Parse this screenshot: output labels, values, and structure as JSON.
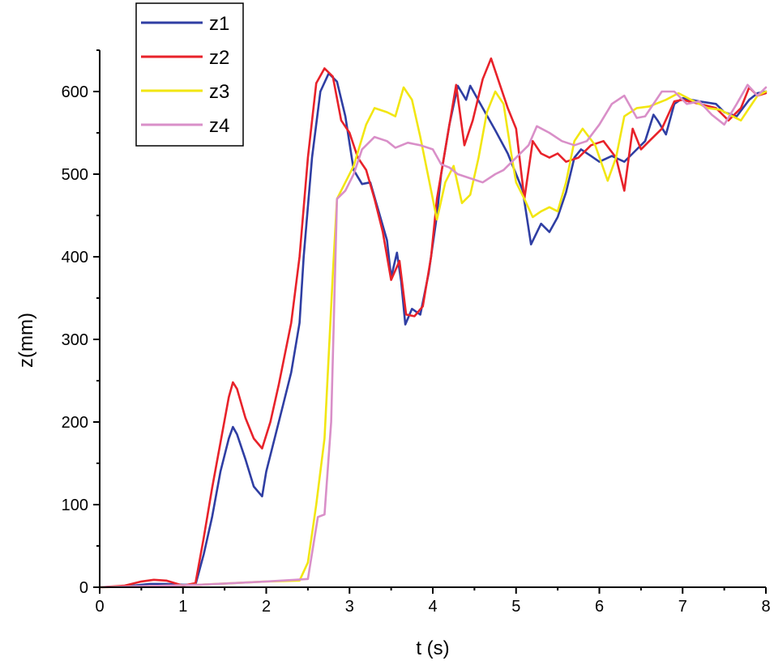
{
  "chart_data": {
    "type": "line",
    "title": "",
    "xlabel": "t (s)",
    "ylabel": "z(mm)",
    "xlim": [
      0,
      8
    ],
    "ylim": [
      0,
      650
    ],
    "x_ticks": [
      "0",
      "1",
      "2",
      "3",
      "4",
      "5",
      "6",
      "7",
      "8"
    ],
    "y_ticks": [
      "0",
      "100",
      "200",
      "300",
      "400",
      "500",
      "600"
    ],
    "grid": false,
    "legend_position": "top-left",
    "series": [
      {
        "name": "z1",
        "color": "#2f3ea3",
        "points": [
          [
            0,
            0
          ],
          [
            0.3,
            1
          ],
          [
            0.6,
            4
          ],
          [
            0.8,
            4
          ],
          [
            1.0,
            3
          ],
          [
            1.15,
            3
          ],
          [
            1.25,
            40
          ],
          [
            1.35,
            85
          ],
          [
            1.45,
            140
          ],
          [
            1.55,
            180
          ],
          [
            1.6,
            194
          ],
          [
            1.65,
            185
          ],
          [
            1.75,
            155
          ],
          [
            1.85,
            122
          ],
          [
            1.95,
            110
          ],
          [
            2.0,
            140
          ],
          [
            2.1,
            180
          ],
          [
            2.2,
            220
          ],
          [
            2.3,
            260
          ],
          [
            2.4,
            320
          ],
          [
            2.45,
            400
          ],
          [
            2.55,
            520
          ],
          [
            2.65,
            600
          ],
          [
            2.75,
            622
          ],
          [
            2.85,
            612
          ],
          [
            2.95,
            570
          ],
          [
            3.05,
            505
          ],
          [
            3.15,
            488
          ],
          [
            3.25,
            490
          ],
          [
            3.35,
            455
          ],
          [
            3.45,
            420
          ],
          [
            3.5,
            375
          ],
          [
            3.57,
            405
          ],
          [
            3.62,
            370
          ],
          [
            3.67,
            318
          ],
          [
            3.75,
            337
          ],
          [
            3.85,
            330
          ],
          [
            3.95,
            380
          ],
          [
            4.05,
            450
          ],
          [
            4.1,
            500
          ],
          [
            4.2,
            560
          ],
          [
            4.3,
            607
          ],
          [
            4.4,
            590
          ],
          [
            4.45,
            607
          ],
          [
            4.6,
            580
          ],
          [
            4.75,
            553
          ],
          [
            4.9,
            525
          ],
          [
            5.0,
            500
          ],
          [
            5.08,
            480
          ],
          [
            5.18,
            415
          ],
          [
            5.3,
            440
          ],
          [
            5.4,
            430
          ],
          [
            5.5,
            448
          ],
          [
            5.6,
            478
          ],
          [
            5.7,
            520
          ],
          [
            5.78,
            530
          ],
          [
            5.9,
            522
          ],
          [
            6.0,
            515
          ],
          [
            6.15,
            522
          ],
          [
            6.3,
            515
          ],
          [
            6.4,
            525
          ],
          [
            6.55,
            540
          ],
          [
            6.65,
            572
          ],
          [
            6.7,
            565
          ],
          [
            6.8,
            548
          ],
          [
            6.9,
            585
          ],
          [
            7.0,
            592
          ],
          [
            7.2,
            588
          ],
          [
            7.4,
            585
          ],
          [
            7.5,
            575
          ],
          [
            7.65,
            570
          ],
          [
            7.8,
            590
          ],
          [
            7.9,
            598
          ],
          [
            8.0,
            600
          ]
        ]
      },
      {
        "name": "z2",
        "color": "#e8222a",
        "points": [
          [
            0,
            0
          ],
          [
            0.3,
            2
          ],
          [
            0.5,
            7
          ],
          [
            0.65,
            9
          ],
          [
            0.8,
            8
          ],
          [
            0.9,
            5
          ],
          [
            1.0,
            2
          ],
          [
            1.15,
            5
          ],
          [
            1.25,
            60
          ],
          [
            1.35,
            120
          ],
          [
            1.45,
            175
          ],
          [
            1.55,
            230
          ],
          [
            1.6,
            248
          ],
          [
            1.65,
            240
          ],
          [
            1.75,
            205
          ],
          [
            1.85,
            180
          ],
          [
            1.95,
            168
          ],
          [
            2.05,
            200
          ],
          [
            2.15,
            245
          ],
          [
            2.3,
            320
          ],
          [
            2.4,
            400
          ],
          [
            2.5,
            520
          ],
          [
            2.6,
            610
          ],
          [
            2.7,
            628
          ],
          [
            2.8,
            618
          ],
          [
            2.9,
            565
          ],
          [
            3.0,
            550
          ],
          [
            3.1,
            520
          ],
          [
            3.2,
            505
          ],
          [
            3.3,
            470
          ],
          [
            3.4,
            430
          ],
          [
            3.5,
            372
          ],
          [
            3.6,
            395
          ],
          [
            3.68,
            330
          ],
          [
            3.78,
            328
          ],
          [
            3.88,
            340
          ],
          [
            3.98,
            400
          ],
          [
            4.05,
            470
          ],
          [
            4.15,
            530
          ],
          [
            4.28,
            608
          ],
          [
            4.38,
            535
          ],
          [
            4.48,
            565
          ],
          [
            4.6,
            615
          ],
          [
            4.7,
            640
          ],
          [
            4.8,
            610
          ],
          [
            4.9,
            580
          ],
          [
            5.0,
            555
          ],
          [
            5.1,
            470
          ],
          [
            5.2,
            540
          ],
          [
            5.3,
            525
          ],
          [
            5.4,
            520
          ],
          [
            5.5,
            525
          ],
          [
            5.6,
            515
          ],
          [
            5.75,
            520
          ],
          [
            5.9,
            535
          ],
          [
            6.05,
            540
          ],
          [
            6.2,
            520
          ],
          [
            6.3,
            480
          ],
          [
            6.4,
            555
          ],
          [
            6.5,
            530
          ],
          [
            6.6,
            540
          ],
          [
            6.75,
            555
          ],
          [
            6.9,
            588
          ],
          [
            7.0,
            590
          ],
          [
            7.2,
            585
          ],
          [
            7.4,
            580
          ],
          [
            7.55,
            565
          ],
          [
            7.7,
            580
          ],
          [
            7.8,
            605
          ],
          [
            7.9,
            595
          ],
          [
            8.0,
            598
          ]
        ]
      },
      {
        "name": "z3",
        "color": "#f2e612",
        "points": [
          [
            0,
            0
          ],
          [
            0.4,
            1
          ],
          [
            0.8,
            2
          ],
          [
            1.2,
            3
          ],
          [
            1.6,
            5
          ],
          [
            2.0,
            7
          ],
          [
            2.4,
            8
          ],
          [
            2.5,
            30
          ],
          [
            2.6,
            100
          ],
          [
            2.7,
            180
          ],
          [
            2.8,
            380
          ],
          [
            2.85,
            470
          ],
          [
            2.95,
            490
          ],
          [
            3.05,
            510
          ],
          [
            3.2,
            560
          ],
          [
            3.3,
            580
          ],
          [
            3.45,
            575
          ],
          [
            3.55,
            570
          ],
          [
            3.65,
            605
          ],
          [
            3.75,
            590
          ],
          [
            3.85,
            545
          ],
          [
            3.95,
            495
          ],
          [
            4.05,
            445
          ],
          [
            4.15,
            490
          ],
          [
            4.25,
            510
          ],
          [
            4.35,
            465
          ],
          [
            4.45,
            475
          ],
          [
            4.55,
            520
          ],
          [
            4.65,
            575
          ],
          [
            4.75,
            600
          ],
          [
            4.85,
            585
          ],
          [
            4.95,
            520
          ],
          [
            5.0,
            490
          ],
          [
            5.1,
            470
          ],
          [
            5.2,
            448
          ],
          [
            5.3,
            455
          ],
          [
            5.4,
            460
          ],
          [
            5.5,
            455
          ],
          [
            5.6,
            490
          ],
          [
            5.7,
            540
          ],
          [
            5.8,
            555
          ],
          [
            5.95,
            535
          ],
          [
            6.1,
            492
          ],
          [
            6.2,
            520
          ],
          [
            6.3,
            570
          ],
          [
            6.45,
            580
          ],
          [
            6.6,
            582
          ],
          [
            6.8,
            590
          ],
          [
            6.95,
            598
          ],
          [
            7.1,
            590
          ],
          [
            7.3,
            580
          ],
          [
            7.45,
            578
          ],
          [
            7.6,
            570
          ],
          [
            7.7,
            565
          ],
          [
            7.8,
            580
          ],
          [
            7.9,
            595
          ],
          [
            8.0,
            600
          ]
        ]
      },
      {
        "name": "z4",
        "color": "#d98fc8",
        "points": [
          [
            0,
            0
          ],
          [
            0.4,
            1
          ],
          [
            0.8,
            2
          ],
          [
            1.2,
            3
          ],
          [
            1.6,
            5
          ],
          [
            2.0,
            7
          ],
          [
            2.35,
            9
          ],
          [
            2.5,
            10
          ],
          [
            2.58,
            60
          ],
          [
            2.62,
            85
          ],
          [
            2.7,
            88
          ],
          [
            2.78,
            200
          ],
          [
            2.85,
            470
          ],
          [
            2.95,
            480
          ],
          [
            3.05,
            500
          ],
          [
            3.15,
            530
          ],
          [
            3.3,
            545
          ],
          [
            3.45,
            540
          ],
          [
            3.55,
            532
          ],
          [
            3.7,
            538
          ],
          [
            3.85,
            535
          ],
          [
            4.0,
            530
          ],
          [
            4.1,
            512
          ],
          [
            4.2,
            508
          ],
          [
            4.3,
            500
          ],
          [
            4.45,
            495
          ],
          [
            4.6,
            490
          ],
          [
            4.75,
            500
          ],
          [
            4.85,
            505
          ],
          [
            5.0,
            520
          ],
          [
            5.15,
            535
          ],
          [
            5.25,
            558
          ],
          [
            5.4,
            550
          ],
          [
            5.55,
            540
          ],
          [
            5.7,
            535
          ],
          [
            5.85,
            540
          ],
          [
            6.0,
            560
          ],
          [
            6.15,
            585
          ],
          [
            6.3,
            595
          ],
          [
            6.45,
            568
          ],
          [
            6.55,
            570
          ],
          [
            6.65,
            585
          ],
          [
            6.75,
            600
          ],
          [
            6.9,
            600
          ],
          [
            7.05,
            585
          ],
          [
            7.2,
            588
          ],
          [
            7.35,
            572
          ],
          [
            7.5,
            560
          ],
          [
            7.65,
            585
          ],
          [
            7.78,
            608
          ],
          [
            7.9,
            595
          ],
          [
            8.0,
            605
          ]
        ]
      }
    ]
  }
}
